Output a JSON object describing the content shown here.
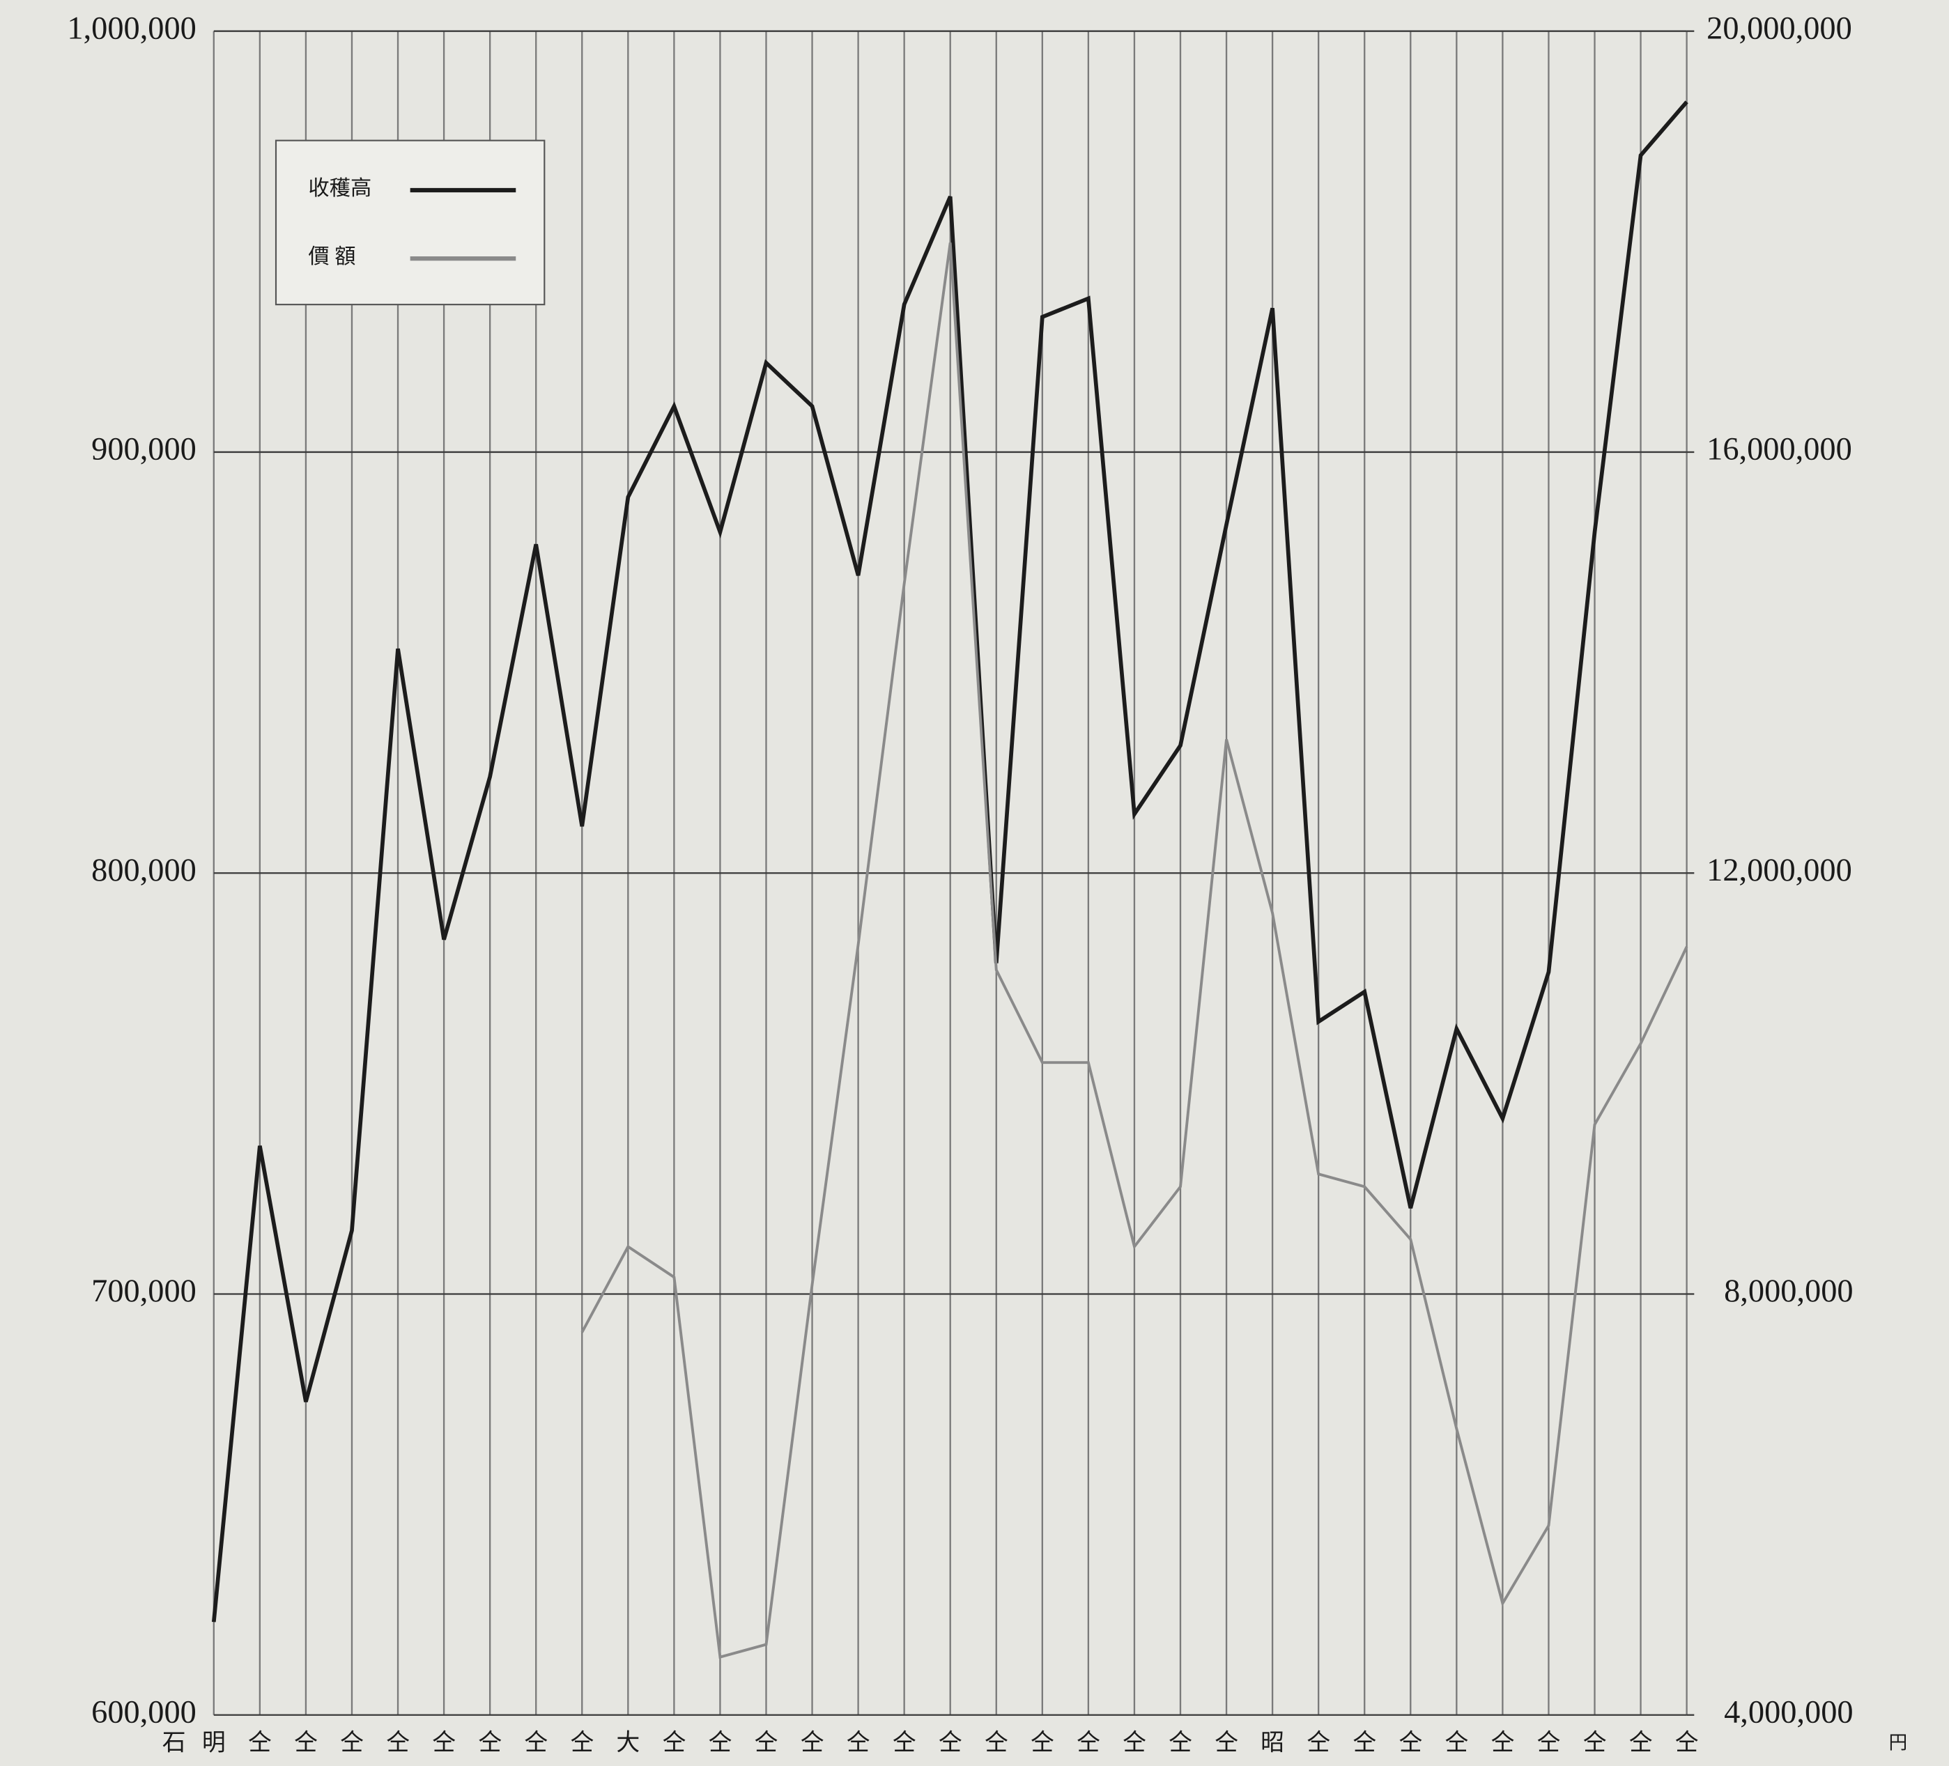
{
  "chart_data": {
    "type": "line",
    "y_label": "石",
    "y2_label": "円",
    "categories": [
      "明",
      "仝",
      "仝",
      "仝",
      "仝",
      "仝",
      "仝",
      "仝",
      "仝",
      "大",
      "仝",
      "仝",
      "仝",
      "仝",
      "仝",
      "仝",
      "仝",
      "仝",
      "仝",
      "仝",
      "仝",
      "仝",
      "仝",
      "昭",
      "仝",
      "仝",
      "仝",
      "仝",
      "仝",
      "仝",
      "仝",
      "仝",
      "仝"
    ],
    "series": [
      {
        "name": "收穫高",
        "color": "#1c1c1c",
        "axis": "y",
        "values": [
          622100,
          735200,
          674400,
          715100,
          853300,
          784200,
          822900,
          878100,
          811100,
          889300,
          910900,
          881000,
          921200,
          910900,
          870700,
          935100,
          960700,
          778600,
          932100,
          936500,
          814000,
          830300,
          882800,
          934200,
          764700,
          771800,
          720400,
          763000,
          741700,
          776500,
          881000,
          970500,
          983200
        ]
      },
      {
        "name": "價 額",
        "color": "#8a8a8a",
        "axis": "y2",
        "values": [
          null,
          null,
          null,
          null,
          null,
          null,
          null,
          null,
          7636000,
          8450000,
          8160000,
          4550000,
          4670000,
          8090000,
          11320000,
          14750000,
          17990000,
          11080000,
          10200000,
          10200000,
          8450000,
          9020000,
          13270000,
          11620000,
          9140000,
          9020000,
          8520000,
          6720000,
          5060000,
          5800000,
          9610000,
          10380000,
          11300000
        ]
      }
    ],
    "ylim": [
      600000,
      1000000
    ],
    "yticks": [
      {
        "value": 600000,
        "label": "600,000"
      },
      {
        "value": 700000,
        "label": "700,000"
      },
      {
        "value": 800000,
        "label": "800,000"
      },
      {
        "value": 900000,
        "label": "900,000"
      },
      {
        "value": 1000000,
        "label": "1,000,000"
      }
    ],
    "y2lim": [
      4000000,
      20000000
    ],
    "y2ticks": [
      {
        "value": 4000000,
        "label": "4,000,000"
      },
      {
        "value": 8000000,
        "label": "8,000,000"
      },
      {
        "value": 12000000,
        "label": "12,000,000"
      },
      {
        "value": 16000000,
        "label": "16,000,000"
      },
      {
        "value": 20000000,
        "label": "20,000,000"
      }
    ],
    "grid": true,
    "legend": "upper-left"
  }
}
